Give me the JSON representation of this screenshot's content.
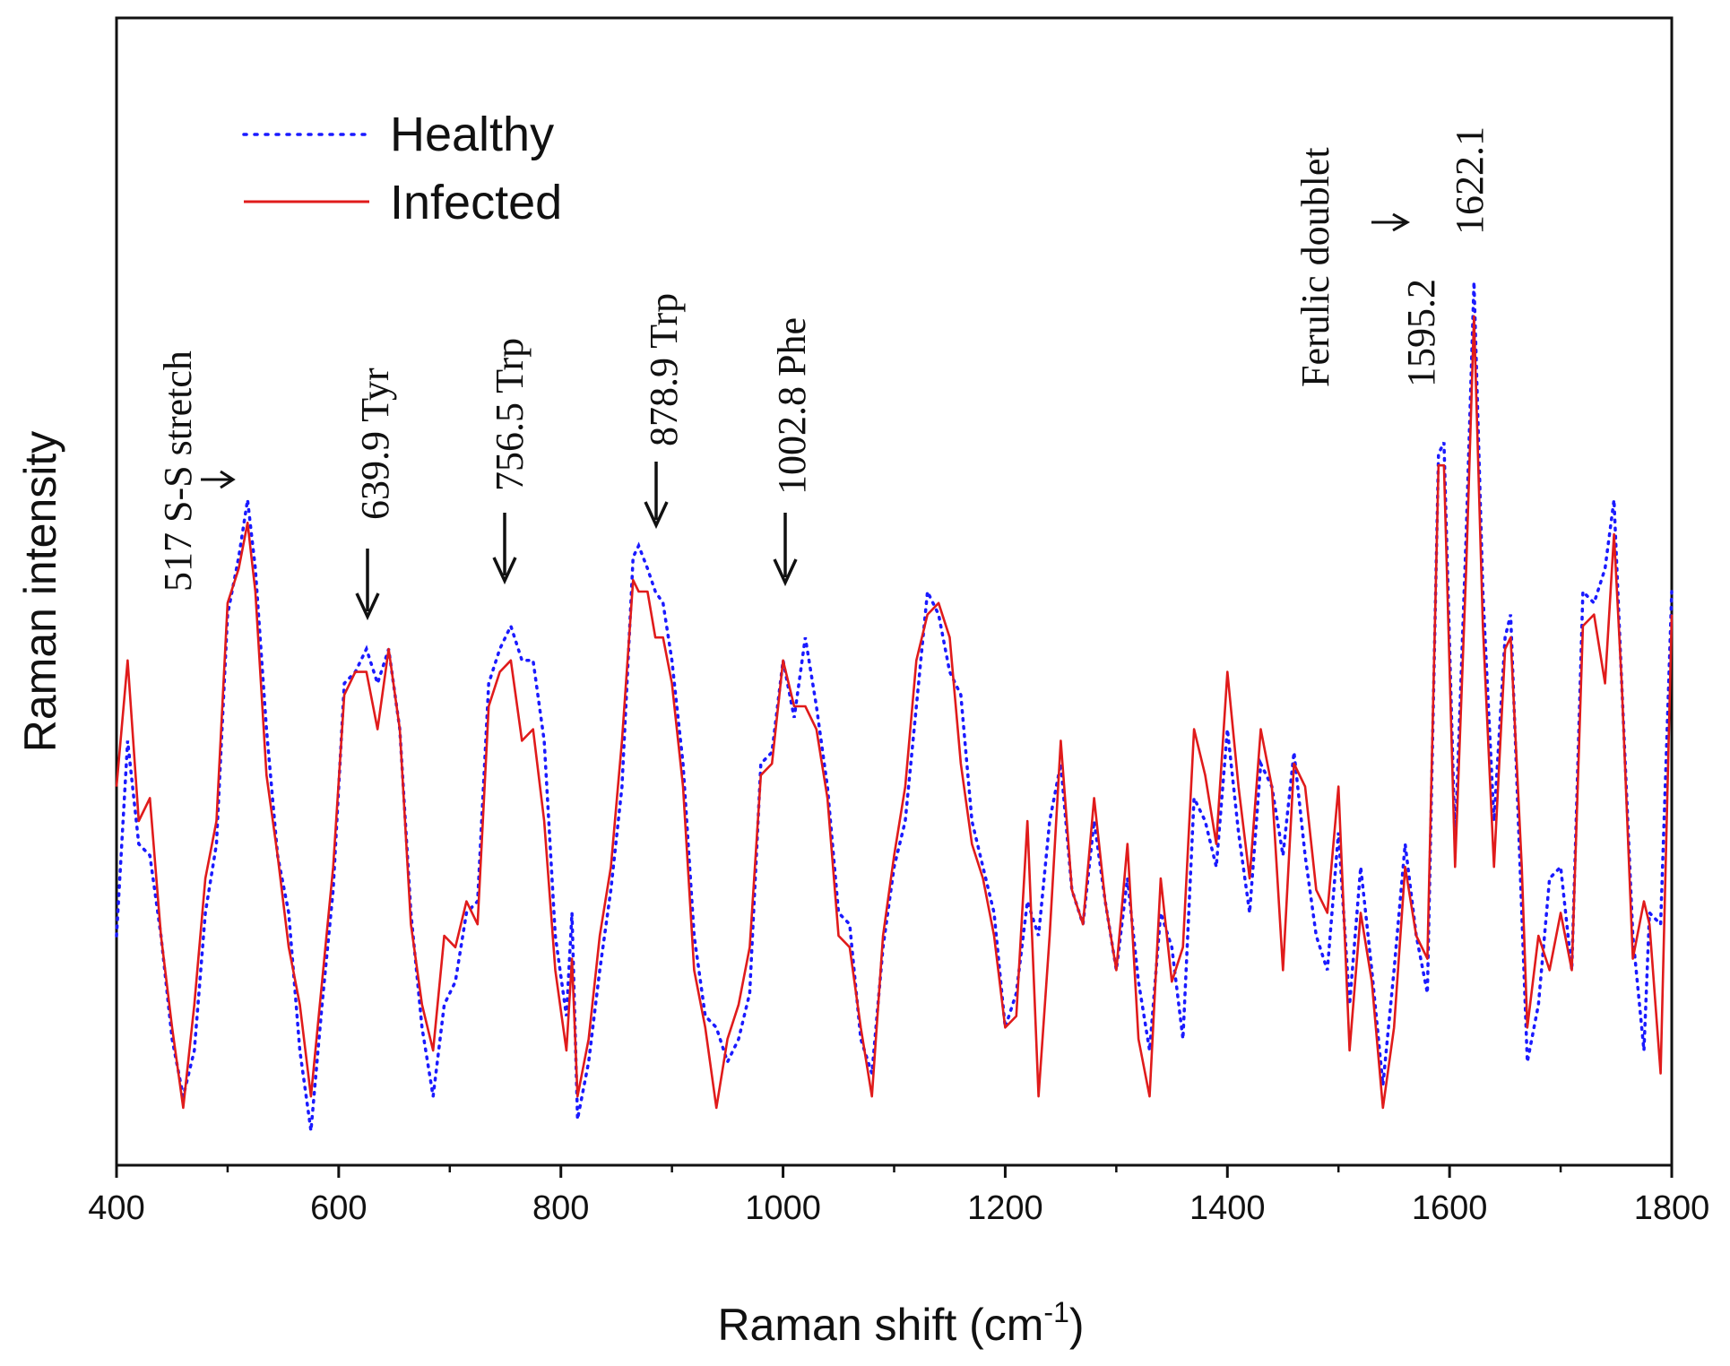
{
  "chart_data": {
    "type": "line",
    "title": "",
    "xlabel": "Raman shift (cm",
    "xlabel_sup": "-1",
    "xlabel_end": ")",
    "ylabel": "Raman intensity",
    "xlim": [
      400,
      1800
    ],
    "ylim": [
      0,
      100
    ],
    "x_ticks": [
      "400",
      "600",
      "800",
      "1000",
      "1200",
      "1400",
      "1600",
      "1800"
    ],
    "x_tick_values": [
      400,
      600,
      800,
      1000,
      1200,
      1400,
      1600,
      1800
    ],
    "legend": {
      "position": "top-left",
      "entries": [
        "Healthy",
        "Infected"
      ]
    },
    "series": [
      {
        "name": "Healthy",
        "color": "#1a1aff",
        "style": "dotted",
        "points": [
          [
            400,
            20
          ],
          [
            410,
            37
          ],
          [
            420,
            28
          ],
          [
            430,
            27
          ],
          [
            440,
            20
          ],
          [
            450,
            11
          ],
          [
            460,
            6
          ],
          [
            470,
            10
          ],
          [
            480,
            22
          ],
          [
            490,
            28
          ],
          [
            500,
            48
          ],
          [
            510,
            53
          ],
          [
            518,
            58
          ],
          [
            525,
            52
          ],
          [
            535,
            38
          ],
          [
            545,
            27
          ],
          [
            555,
            22
          ],
          [
            565,
            10
          ],
          [
            575,
            3
          ],
          [
            585,
            14
          ],
          [
            595,
            24
          ],
          [
            605,
            42
          ],
          [
            615,
            43
          ],
          [
            625,
            45
          ],
          [
            635,
            42
          ],
          [
            645,
            45
          ],
          [
            655,
            38
          ],
          [
            665,
            22
          ],
          [
            675,
            12
          ],
          [
            685,
            6
          ],
          [
            695,
            14
          ],
          [
            705,
            16
          ],
          [
            715,
            22
          ],
          [
            725,
            23
          ],
          [
            735,
            42
          ],
          [
            745,
            45
          ],
          [
            755,
            47
          ],
          [
            765,
            44
          ],
          [
            775,
            44
          ],
          [
            785,
            37
          ],
          [
            795,
            20
          ],
          [
            805,
            13
          ],
          [
            810,
            22
          ],
          [
            815,
            4
          ],
          [
            825,
            9
          ],
          [
            835,
            17
          ],
          [
            845,
            24
          ],
          [
            855,
            33
          ],
          [
            865,
            53
          ],
          [
            870,
            54
          ],
          [
            878,
            52
          ],
          [
            885,
            50
          ],
          [
            892,
            49
          ],
          [
            900,
            44
          ],
          [
            910,
            35
          ],
          [
            920,
            20
          ],
          [
            930,
            13
          ],
          [
            940,
            12
          ],
          [
            950,
            9
          ],
          [
            960,
            11
          ],
          [
            970,
            15
          ],
          [
            980,
            35
          ],
          [
            990,
            36
          ],
          [
            1000,
            44
          ],
          [
            1010,
            39
          ],
          [
            1020,
            46
          ],
          [
            1030,
            40
          ],
          [
            1040,
            33
          ],
          [
            1050,
            22
          ],
          [
            1060,
            21
          ],
          [
            1070,
            11
          ],
          [
            1080,
            8
          ],
          [
            1090,
            19
          ],
          [
            1100,
            26
          ],
          [
            1110,
            30
          ],
          [
            1120,
            40
          ],
          [
            1130,
            50
          ],
          [
            1140,
            48
          ],
          [
            1150,
            43
          ],
          [
            1160,
            41
          ],
          [
            1170,
            30
          ],
          [
            1180,
            26
          ],
          [
            1190,
            22
          ],
          [
            1200,
            12
          ],
          [
            1210,
            15
          ],
          [
            1220,
            23
          ],
          [
            1230,
            20
          ],
          [
            1240,
            30
          ],
          [
            1250,
            35
          ],
          [
            1260,
            24
          ],
          [
            1270,
            21
          ],
          [
            1280,
            30
          ],
          [
            1290,
            23
          ],
          [
            1300,
            17
          ],
          [
            1310,
            25
          ],
          [
            1320,
            16
          ],
          [
            1330,
            10
          ],
          [
            1340,
            22
          ],
          [
            1350,
            19
          ],
          [
            1360,
            11
          ],
          [
            1370,
            32
          ],
          [
            1380,
            30
          ],
          [
            1390,
            26
          ],
          [
            1400,
            38
          ],
          [
            1410,
            29
          ],
          [
            1420,
            22
          ],
          [
            1430,
            35
          ],
          [
            1440,
            33
          ],
          [
            1450,
            27
          ],
          [
            1460,
            36
          ],
          [
            1470,
            27
          ],
          [
            1480,
            20
          ],
          [
            1490,
            17
          ],
          [
            1500,
            29
          ],
          [
            1510,
            14
          ],
          [
            1520,
            26
          ],
          [
            1530,
            17
          ],
          [
            1540,
            7
          ],
          [
            1550,
            17
          ],
          [
            1560,
            28
          ],
          [
            1570,
            20
          ],
          [
            1580,
            15
          ],
          [
            1590,
            62
          ],
          [
            1595,
            63
          ],
          [
            1605,
            28
          ],
          [
            1615,
            55
          ],
          [
            1622,
            77
          ],
          [
            1630,
            50
          ],
          [
            1640,
            30
          ],
          [
            1650,
            46
          ],
          [
            1655,
            48
          ],
          [
            1665,
            22
          ],
          [
            1670,
            9
          ],
          [
            1680,
            14
          ],
          [
            1690,
            25
          ],
          [
            1700,
            26
          ],
          [
            1710,
            17
          ],
          [
            1720,
            50
          ],
          [
            1730,
            49
          ],
          [
            1740,
            52
          ],
          [
            1748,
            58
          ],
          [
            1755,
            42
          ],
          [
            1765,
            20
          ],
          [
            1775,
            10
          ],
          [
            1780,
            22
          ],
          [
            1790,
            21
          ],
          [
            1800,
            50
          ]
        ]
      },
      {
        "name": "Infected",
        "color": "#e01b1b",
        "style": "solid",
        "points": [
          [
            400,
            33
          ],
          [
            410,
            44
          ],
          [
            420,
            30
          ],
          [
            430,
            32
          ],
          [
            440,
            20
          ],
          [
            450,
            12
          ],
          [
            460,
            5
          ],
          [
            470,
            14
          ],
          [
            480,
            25
          ],
          [
            490,
            30
          ],
          [
            500,
            49
          ],
          [
            510,
            52
          ],
          [
            518,
            56
          ],
          [
            525,
            50
          ],
          [
            535,
            34
          ],
          [
            545,
            27
          ],
          [
            555,
            19
          ],
          [
            565,
            14
          ],
          [
            575,
            6
          ],
          [
            585,
            16
          ],
          [
            595,
            26
          ],
          [
            605,
            41
          ],
          [
            615,
            43
          ],
          [
            625,
            43
          ],
          [
            635,
            38
          ],
          [
            645,
            45
          ],
          [
            655,
            38
          ],
          [
            665,
            21
          ],
          [
            675,
            14
          ],
          [
            685,
            10
          ],
          [
            695,
            20
          ],
          [
            705,
            19
          ],
          [
            715,
            23
          ],
          [
            725,
            21
          ],
          [
            735,
            40
          ],
          [
            745,
            43
          ],
          [
            755,
            44
          ],
          [
            765,
            37
          ],
          [
            775,
            38
          ],
          [
            785,
            30
          ],
          [
            795,
            17
          ],
          [
            805,
            10
          ],
          [
            810,
            18
          ],
          [
            815,
            6
          ],
          [
            825,
            11
          ],
          [
            835,
            20
          ],
          [
            845,
            26
          ],
          [
            855,
            37
          ],
          [
            865,
            51
          ],
          [
            870,
            50
          ],
          [
            878,
            50
          ],
          [
            885,
            46
          ],
          [
            892,
            46
          ],
          [
            900,
            42
          ],
          [
            910,
            33
          ],
          [
            920,
            17
          ],
          [
            930,
            12
          ],
          [
            940,
            5
          ],
          [
            950,
            11
          ],
          [
            960,
            14
          ],
          [
            970,
            19
          ],
          [
            980,
            34
          ],
          [
            990,
            35
          ],
          [
            1000,
            44
          ],
          [
            1010,
            40
          ],
          [
            1020,
            40
          ],
          [
            1030,
            38
          ],
          [
            1040,
            32
          ],
          [
            1050,
            20
          ],
          [
            1060,
            19
          ],
          [
            1070,
            12
          ],
          [
            1080,
            6
          ],
          [
            1090,
            20
          ],
          [
            1100,
            27
          ],
          [
            1110,
            33
          ],
          [
            1120,
            44
          ],
          [
            1130,
            48
          ],
          [
            1140,
            49
          ],
          [
            1150,
            46
          ],
          [
            1160,
            35
          ],
          [
            1170,
            28
          ],
          [
            1180,
            25
          ],
          [
            1190,
            20
          ],
          [
            1200,
            12
          ],
          [
            1210,
            13
          ],
          [
            1220,
            30
          ],
          [
            1230,
            6
          ],
          [
            1240,
            20
          ],
          [
            1250,
            37
          ],
          [
            1260,
            24
          ],
          [
            1270,
            21
          ],
          [
            1280,
            32
          ],
          [
            1290,
            23
          ],
          [
            1300,
            17
          ],
          [
            1310,
            28
          ],
          [
            1320,
            11
          ],
          [
            1330,
            6
          ],
          [
            1340,
            25
          ],
          [
            1350,
            16
          ],
          [
            1360,
            19
          ],
          [
            1370,
            38
          ],
          [
            1380,
            34
          ],
          [
            1390,
            28
          ],
          [
            1400,
            43
          ],
          [
            1410,
            33
          ],
          [
            1420,
            25
          ],
          [
            1430,
            38
          ],
          [
            1440,
            33
          ],
          [
            1450,
            17
          ],
          [
            1460,
            35
          ],
          [
            1470,
            33
          ],
          [
            1480,
            24
          ],
          [
            1490,
            22
          ],
          [
            1500,
            33
          ],
          [
            1510,
            10
          ],
          [
            1520,
            22
          ],
          [
            1530,
            16
          ],
          [
            1540,
            5
          ],
          [
            1550,
            12
          ],
          [
            1560,
            26
          ],
          [
            1570,
            20
          ],
          [
            1580,
            18
          ],
          [
            1590,
            61
          ],
          [
            1595,
            61
          ],
          [
            1605,
            26
          ],
          [
            1615,
            52
          ],
          [
            1622,
            74
          ],
          [
            1630,
            47
          ],
          [
            1640,
            26
          ],
          [
            1650,
            45
          ],
          [
            1655,
            46
          ],
          [
            1665,
            26
          ],
          [
            1670,
            12
          ],
          [
            1680,
            20
          ],
          [
            1690,
            17
          ],
          [
            1700,
            22
          ],
          [
            1710,
            17
          ],
          [
            1720,
            47
          ],
          [
            1730,
            48
          ],
          [
            1740,
            42
          ],
          [
            1748,
            55
          ],
          [
            1755,
            42
          ],
          [
            1765,
            18
          ],
          [
            1775,
            23
          ],
          [
            1780,
            21
          ],
          [
            1790,
            8
          ],
          [
            1800,
            48
          ]
        ]
      }
    ],
    "annotations": [
      {
        "id": "s-s",
        "text": "517 S-S stretch",
        "x": 517
      },
      {
        "id": "tyr",
        "text": "639.9 Tyr",
        "x": 639.9
      },
      {
        "id": "trp1",
        "text": "756.5 Trp",
        "x": 756.5
      },
      {
        "id": "trp2",
        "text": "878.9 Trp",
        "x": 878.9
      },
      {
        "id": "phe",
        "text": "1002.8 Phe",
        "x": 1002.8
      },
      {
        "id": "ferulic",
        "text": "Ferulic doublet",
        "x": 1560
      },
      {
        "id": "p1595",
        "text": "1595.2",
        "x": 1595.2
      },
      {
        "id": "p1622",
        "text": "1622.1",
        "x": 1622.1
      }
    ]
  }
}
